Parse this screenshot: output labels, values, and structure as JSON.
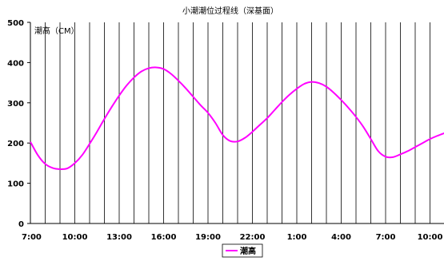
{
  "chart_data": {
    "type": "line",
    "title": "小潮潮位过程线（深基面）",
    "unit_label": "潮高（CM）",
    "y_ticks": [
      0,
      100,
      200,
      300,
      400,
      500
    ],
    "ylim": [
      0,
      500
    ],
    "x_range": [
      0,
      30
    ],
    "x_ticks": [
      {
        "x": 0,
        "label": "7:00"
      },
      {
        "x": 3,
        "label": "10:00"
      },
      {
        "x": 6,
        "label": "13:00"
      },
      {
        "x": 9,
        "label": "16:00"
      },
      {
        "x": 12,
        "label": "19:00"
      },
      {
        "x": 15,
        "label": "22:00"
      },
      {
        "x": 18,
        "label": "1:00"
      },
      {
        "x": 21,
        "label": "4:00"
      },
      {
        "x": 24,
        "label": "7:00"
      },
      {
        "x": 27,
        "label": "10:00"
      }
    ],
    "grid": "vertical-hourly",
    "legend_position": "bottom-center",
    "series": [
      {
        "name": "潮高",
        "color": "#ff00ff",
        "x": [
          0,
          0.5,
          1,
          1.5,
          2,
          2.5,
          3,
          3.5,
          4,
          4.5,
          5,
          5.5,
          6,
          6.5,
          7,
          7.5,
          8,
          8.5,
          9,
          9.5,
          10,
          10.5,
          11,
          11.5,
          12,
          12.5,
          13,
          13.5,
          14,
          14.5,
          15,
          15.5,
          16,
          16.5,
          17,
          17.5,
          18,
          18.5,
          19,
          19.5,
          20,
          20.5,
          21,
          21.5,
          22,
          22.5,
          23,
          23.5,
          24,
          24.5,
          25,
          25.5,
          26,
          26.5,
          27,
          27.5,
          28
        ],
        "values": [
          203,
          170,
          148,
          138,
          135,
          137,
          150,
          170,
          198,
          228,
          260,
          290,
          318,
          343,
          363,
          378,
          386,
          388,
          384,
          372,
          355,
          336,
          315,
          294,
          275,
          250,
          220,
          205,
          204,
          213,
          228,
          245,
          262,
          282,
          302,
          320,
          335,
          347,
          352,
          349,
          340,
          325,
          307,
          287,
          265,
          240,
          210,
          180,
          166,
          165,
          172,
          180,
          190,
          200,
          210,
          218,
          225
        ]
      }
    ]
  }
}
